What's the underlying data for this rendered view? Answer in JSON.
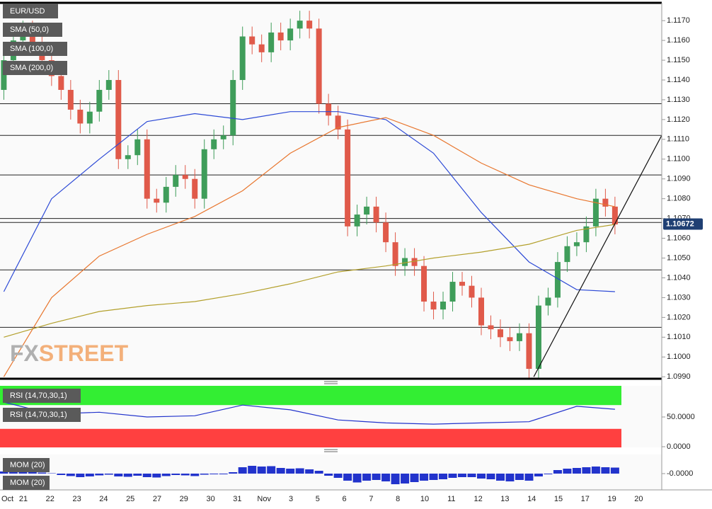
{
  "chart_data": [
    {
      "type": "candlestick",
      "title": "EUR/USD",
      "open": [
        1.1135,
        1.115,
        1.116,
        1.1165,
        1.1158,
        1.115,
        1.1142,
        1.1135,
        1.1125,
        1.1118,
        1.1124,
        1.1135,
        1.114,
        1.11,
        1.1102,
        1.111,
        1.108,
        1.1078,
        1.1086,
        1.1092,
        1.109,
        1.108,
        1.1105,
        1.111,
        1.1112,
        1.114,
        1.1162,
        1.1158,
        1.1154,
        1.1164,
        1.116,
        1.1166,
        1.117,
        1.1166,
        1.1128,
        1.1122,
        1.1115,
        1.1066,
        1.1072,
        1.1076,
        1.1068,
        1.1058,
        1.1046,
        1.105,
        1.1046,
        1.1028,
        1.1024,
        1.1028,
        1.1038,
        1.1036,
        1.103,
        1.1016,
        1.1014,
        1.101,
        1.1008,
        1.1012,
        1.0994,
        1.1026,
        1.103,
        1.1048,
        1.1056,
        1.1058,
        1.1066,
        1.108,
        1.1076
      ],
      "high": [
        1.1155,
        1.1165,
        1.117,
        1.117,
        1.1163,
        1.1155,
        1.1147,
        1.114,
        1.113,
        1.1129,
        1.114,
        1.1145,
        1.1145,
        1.1107,
        1.1115,
        1.1115,
        1.1085,
        1.1091,
        1.1097,
        1.1097,
        1.1095,
        1.111,
        1.1115,
        1.1117,
        1.1145,
        1.1167,
        1.1167,
        1.1163,
        1.1169,
        1.1169,
        1.1171,
        1.1175,
        1.1175,
        1.1171,
        1.1133,
        1.1127,
        1.112,
        1.1077,
        1.1081,
        1.1081,
        1.1073,
        1.1063,
        1.1055,
        1.1055,
        1.1051,
        1.1033,
        1.1033,
        1.1043,
        1.1043,
        1.1041,
        1.1035,
        1.1021,
        1.1019,
        1.1015,
        1.1017,
        1.1017,
        1.1031,
        1.1035,
        1.1053,
        1.1061,
        1.1063,
        1.1071,
        1.1085,
        1.1085,
        1.1081
      ],
      "low": [
        1.113,
        1.1145,
        1.1155,
        1.1153,
        1.1145,
        1.1137,
        1.113,
        1.112,
        1.1113,
        1.1113,
        1.1119,
        1.113,
        1.1095,
        1.1095,
        1.1097,
        1.1075,
        1.1073,
        1.1073,
        1.1081,
        1.1085,
        1.1075,
        1.1075,
        1.11,
        1.1105,
        1.1107,
        1.1135,
        1.1153,
        1.1149,
        1.1149,
        1.1155,
        1.1155,
        1.1161,
        1.1161,
        1.1123,
        1.1117,
        1.111,
        1.1061,
        1.1061,
        1.1067,
        1.1063,
        1.1053,
        1.1041,
        1.1041,
        1.1041,
        1.1023,
        1.1019,
        1.1019,
        1.1023,
        1.1031,
        1.1025,
        1.1011,
        1.1009,
        1.1005,
        1.1003,
        1.1003,
        1.0989,
        1.0989,
        1.1021,
        1.1025,
        1.1043,
        1.1051,
        1.1053,
        1.1061,
        1.1071,
        1.1062
      ],
      "close": [
        1.115,
        1.116,
        1.1165,
        1.1158,
        1.115,
        1.1142,
        1.1135,
        1.1125,
        1.1118,
        1.1124,
        1.1135,
        1.114,
        1.11,
        1.1102,
        1.111,
        1.108,
        1.1078,
        1.1086,
        1.1092,
        1.109,
        1.108,
        1.1105,
        1.111,
        1.1112,
        1.114,
        1.1162,
        1.1158,
        1.1154,
        1.1164,
        1.116,
        1.1166,
        1.117,
        1.1166,
        1.1128,
        1.1122,
        1.1115,
        1.1066,
        1.1072,
        1.1076,
        1.1068,
        1.1058,
        1.1046,
        1.105,
        1.1046,
        1.1028,
        1.1024,
        1.1028,
        1.1038,
        1.1036,
        1.103,
        1.1016,
        1.1014,
        1.101,
        1.1008,
        1.1012,
        1.0994,
        1.1026,
        1.103,
        1.1048,
        1.1056,
        1.1058,
        1.1066,
        1.108,
        1.1076,
        1.1067
      ],
      "up_color": "#3f9d5a",
      "down_color": "#e05a4a",
      "series": [
        {
          "name": "SMA (50,0)",
          "color": "#2d4ad6",
          "x": [
            0,
            5,
            10,
            15,
            20,
            25,
            30,
            35,
            40,
            45,
            50,
            55,
            60,
            64
          ],
          "values": [
            1.1033,
            1.108,
            1.11,
            1.1119,
            1.1123,
            1.112,
            1.1124,
            1.1124,
            1.112,
            1.1103,
            1.1073,
            1.1048,
            1.1034,
            1.1033
          ]
        },
        {
          "name": "SMA (100,0)",
          "color": "#e8762e",
          "x": [
            0,
            5,
            10,
            15,
            20,
            25,
            30,
            35,
            40,
            45,
            50,
            55,
            60,
            64
          ],
          "values": [
            1.099,
            1.103,
            1.1051,
            1.1062,
            1.1071,
            1.1084,
            1.1103,
            1.1116,
            1.1121,
            1.1112,
            1.1098,
            1.1087,
            1.108,
            1.1076
          ]
        },
        {
          "name": "SMA (200,0)",
          "color": "#b3a02c",
          "x": [
            0,
            5,
            10,
            15,
            20,
            25,
            30,
            35,
            40,
            45,
            50,
            55,
            60,
            64
          ],
          "values": [
            1.101,
            1.1017,
            1.1023,
            1.1026,
            1.1028,
            1.1032,
            1.1037,
            1.1043,
            1.1046,
            1.105,
            1.1053,
            1.1057,
            1.1064,
            1.1067
          ]
        }
      ],
      "levels": [
        1.1128,
        1.1112,
        1.1092,
        1.107,
        1.1068,
        1.1044,
        1.1015
      ],
      "trendline": {
        "x": [
          55.5,
          68.9
        ],
        "values": [
          1.099,
          1.1112
        ]
      },
      "last_price": {
        "value": 1.10672,
        "label": "1.10672"
      },
      "xlim": [
        -0.4,
        68.9
      ],
      "ylim": [
        1.0989,
        1.1179
      ],
      "yticks": [
        {
          "value": 1.117,
          "label": "1.1170"
        },
        {
          "value": 1.116,
          "label": "1.1160"
        },
        {
          "value": 1.115,
          "label": "1.1150"
        },
        {
          "value": 1.114,
          "label": "1.1140"
        },
        {
          "value": 1.113,
          "label": "1.1130"
        },
        {
          "value": 1.112,
          "label": "1.1120"
        },
        {
          "value": 1.111,
          "label": "1.1110"
        },
        {
          "value": 1.11,
          "label": "1.1100"
        },
        {
          "value": 1.109,
          "label": "1.1090"
        },
        {
          "value": 1.108,
          "label": "1.1080"
        },
        {
          "value": 1.107,
          "label": "1.1070"
        },
        {
          "value": 1.106,
          "label": "1.1060"
        },
        {
          "value": 1.105,
          "label": "1.1050"
        },
        {
          "value": 1.104,
          "label": "1.1040"
        },
        {
          "value": 1.103,
          "label": "1.1030"
        },
        {
          "value": 1.102,
          "label": "1.1020"
        },
        {
          "value": 1.101,
          "label": "1.1010"
        },
        {
          "value": 1.1,
          "label": "1.1000"
        },
        {
          "value": 1.099,
          "label": "1.0990"
        }
      ],
      "month_start": "Oct",
      "categories": [
        "21",
        "22",
        "23",
        "24",
        "25",
        "27",
        "29",
        "30",
        "31",
        "Nov",
        "3",
        "5",
        "6",
        "7",
        "8",
        "10",
        "11",
        "12",
        "13",
        "14",
        "15",
        "17",
        "19",
        "20"
      ],
      "watermark": [
        "FX",
        "STREET"
      ]
    },
    {
      "type": "line",
      "title": "RSI (14,70,30,1)",
      "series": [
        {
          "name": "RSI (14,70,30,1)",
          "color": "#2233cc",
          "x": [
            0,
            5,
            10,
            15,
            20,
            25,
            30,
            35,
            40,
            45,
            50,
            55,
            60,
            64
          ],
          "values": [
            75,
            55,
            58,
            50,
            52,
            70,
            62,
            45,
            40,
            38,
            40,
            42,
            68,
            63
          ]
        }
      ],
      "overbought": 70,
      "oversold": 30,
      "xlim": [
        -0.4,
        68.9
      ],
      "ylim": [
        -1.2,
        102.4
      ],
      "yticks": [
        {
          "value": 50,
          "label": "50.0000"
        },
        {
          "value": 0,
          "label": "0.0000"
        }
      ]
    },
    {
      "type": "bar",
      "title": "MOM (20)",
      "name": "MOM (20)",
      "color": "#2233cc",
      "values": [
        0.0006,
        0.0008,
        0.0007,
        0.0005,
        0.0003,
        0.0001,
        -0.0004,
        -0.0007,
        -0.001,
        -0.0008,
        -0.0005,
        -0.0003,
        -0.0008,
        -0.0009,
        -0.0006,
        -0.001,
        -0.0011,
        -0.0007,
        -0.0004,
        -0.0005,
        -0.0007,
        -0.0003,
        -0.0002,
        -0.0002,
        0.0004,
        0.0018,
        0.0022,
        0.002,
        0.0021,
        0.0016,
        0.0014,
        0.0015,
        0.0012,
        0.0008,
        -0.0006,
        -0.0012,
        -0.002,
        -0.0025,
        -0.002,
        -0.0018,
        -0.0022,
        -0.003,
        -0.0028,
        -0.0024,
        -0.002,
        -0.0018,
        -0.0016,
        -0.0012,
        -0.001,
        -0.001,
        -0.0014,
        -0.0016,
        -0.002,
        -0.0022,
        -0.0018,
        -0.002,
        -0.0008,
        -0.0002,
        0.001,
        0.0014,
        0.0016,
        0.0018,
        0.002,
        0.0018,
        0.0017
      ],
      "xlim": [
        -0.4,
        68.9
      ],
      "ylim": [
        -0.0046,
        0.0054
      ],
      "yticks": [
        {
          "value": 0,
          "label": "-0.0000"
        }
      ]
    }
  ]
}
